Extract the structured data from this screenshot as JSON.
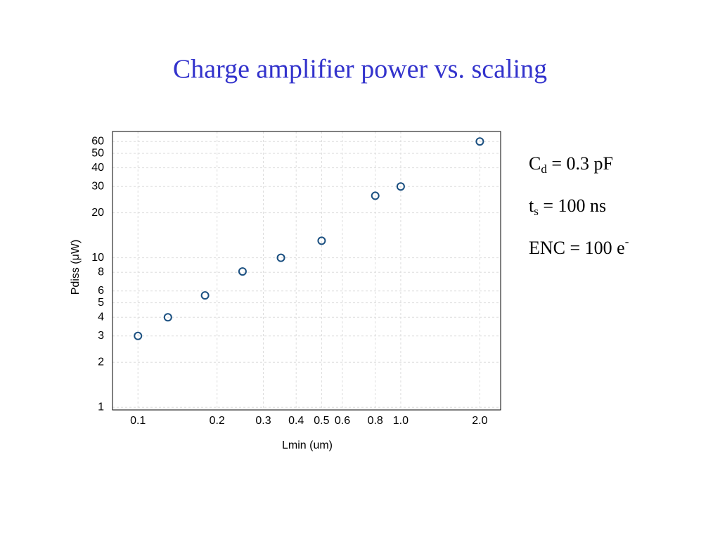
{
  "chart_data": {
    "type": "scatter",
    "title": "Charge amplifier power vs. scaling",
    "x_label": "Lmin (um)",
    "y_label": "Pdiss (μW)",
    "x": [
      0.1,
      0.13,
      0.18,
      0.25,
      0.35,
      0.5,
      0.8,
      1.0,
      2.0
    ],
    "values": [
      3,
      4,
      5.6,
      8.1,
      10,
      13,
      26,
      30,
      60
    ],
    "color": "#1a4f80",
    "log_x": true,
    "log_y": true,
    "grid": true,
    "xlim": [
      0.08,
      2.4
    ],
    "ylim": [
      0.96,
      70
    ],
    "xticks": [
      0.1,
      0.2,
      0.3,
      0.4,
      0.5,
      0.6,
      0.8,
      {
        "value": 1,
        "label": "1.0"
      },
      {
        "value": 2,
        "label": "2.0"
      }
    ],
    "yticks": [
      1,
      2,
      3,
      4,
      5,
      6,
      8,
      10,
      20,
      30,
      40,
      50,
      60
    ],
    "annotations": [
      {
        "text": "C",
        "sub": "d",
        "after": " = 0.3 pF"
      },
      {
        "text": "t",
        "sub": "s",
        "after": " = 100 ns"
      },
      {
        "text": "ENC = 100 e",
        "sup": "-"
      }
    ]
  }
}
